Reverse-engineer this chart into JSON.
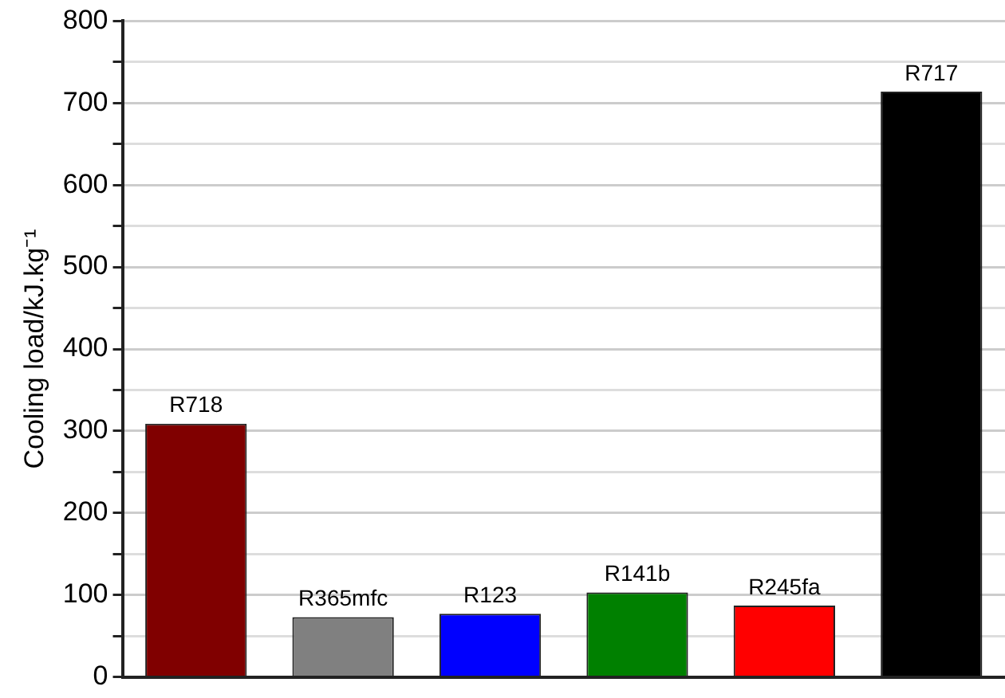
{
  "chart_data": {
    "type": "bar",
    "ylabel": "Cooling load/kJ.kg⁻¹",
    "categories": [
      "R718",
      "R365mfc",
      "R123",
      "R141b",
      "R245fa",
      "R717"
    ],
    "values": [
      309,
      73,
      77,
      103,
      87,
      714
    ],
    "colors": [
      "#800000",
      "#808080",
      "#0000ff",
      "#008000",
      "#ff0000",
      "#000000"
    ],
    "ylim": [
      0,
      800
    ],
    "yticks": [
      0,
      {
        "value": 50,
        "label": null
      },
      100,
      {
        "value": 150,
        "label": null
      },
      200,
      {
        "value": 250,
        "label": null
      },
      300,
      {
        "value": 350,
        "label": null
      },
      400,
      {
        "value": 450,
        "label": null
      },
      500,
      {
        "value": 550,
        "label": null
      },
      600,
      {
        "value": 650,
        "label": null
      },
      700,
      {
        "value": 750,
        "label": null
      },
      800
    ],
    "grid": "y",
    "tick_labels": "y"
  }
}
